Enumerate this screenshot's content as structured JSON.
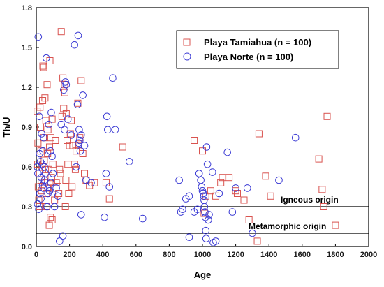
{
  "chart_data": {
    "type": "scatter",
    "xlabel": "Age",
    "ylabel": "Th/U",
    "xlim": [
      0,
      2000
    ],
    "ylim": [
      0,
      1.8
    ],
    "x_ticks": [
      "0",
      "200",
      "400",
      "600",
      "800",
      "1000",
      "1200",
      "1400",
      "1600",
      "1800",
      "2000"
    ],
    "y_ticks": [
      "0.0",
      "0.3",
      "0.6",
      "0.9",
      "1.2",
      "1.5",
      "1.8"
    ],
    "grid": false,
    "legend_position": "top-right",
    "reference_lines": [
      {
        "label": "Igneous origin",
        "y": 0.3
      },
      {
        "label": "Metamorphic origin",
        "y": 0.1
      }
    ],
    "series": [
      {
        "name": "Playa Tamiahua (n = 100)",
        "marker": "square",
        "color": "#d9534f",
        "points": [
          [
            5,
            1.02
          ],
          [
            8,
            0.62
          ],
          [
            10,
            0.78
          ],
          [
            12,
            0.45
          ],
          [
            15,
            0.35
          ],
          [
            18,
            0.3
          ],
          [
            20,
            0.55
          ],
          [
            22,
            1.05
          ],
          [
            25,
            0.9
          ],
          [
            28,
            0.72
          ],
          [
            30,
            0.5
          ],
          [
            32,
            0.42
          ],
          [
            35,
            0.6
          ],
          [
            38,
            1.1
          ],
          [
            40,
            1.36
          ],
          [
            42,
            0.82
          ],
          [
            45,
            1.35
          ],
          [
            48,
            0.65
          ],
          [
            50,
            0.48
          ],
          [
            52,
            1.12
          ],
          [
            55,
            0.58
          ],
          [
            58,
            0.95
          ],
          [
            60,
            0.4
          ],
          [
            62,
            0.3
          ],
          [
            65,
            1.22
          ],
          [
            68,
            0.7
          ],
          [
            70,
            0.88
          ],
          [
            72,
            0.44
          ],
          [
            75,
            0.58
          ],
          [
            78,
            0.16
          ],
          [
            80,
            0.75
          ],
          [
            82,
            1.4
          ],
          [
            85,
            0.22
          ],
          [
            88,
            0.82
          ],
          [
            90,
            0.52
          ],
          [
            95,
            0.96
          ],
          [
            100,
            0.62
          ],
          [
            105,
            0.44
          ],
          [
            110,
            0.35
          ],
          [
            120,
            0.48
          ],
          [
            130,
            0.5
          ],
          [
            140,
            0.58
          ],
          [
            150,
            1.62
          ],
          [
            155,
            0.98
          ],
          [
            160,
            1.27
          ],
          [
            165,
            1.04
          ],
          [
            170,
            1.22
          ],
          [
            172,
            1.16
          ],
          [
            175,
            0.3
          ],
          [
            178,
            0.5
          ],
          [
            180,
            1.0
          ],
          [
            185,
            0.8
          ],
          [
            190,
            0.62
          ],
          [
            200,
            0.76
          ],
          [
            210,
            0.95
          ],
          [
            220,
            0.76
          ],
          [
            230,
            0.62
          ],
          [
            235,
            0.58
          ],
          [
            240,
            0.72
          ],
          [
            250,
            1.08
          ],
          [
            255,
            0.76
          ],
          [
            262,
            0.82
          ],
          [
            270,
            1.25
          ],
          [
            280,
            0.7
          ],
          [
            290,
            0.55
          ],
          [
            300,
            0.5
          ],
          [
            320,
            0.46
          ],
          [
            350,
            0.48
          ],
          [
            420,
            0.48
          ],
          [
            440,
            0.36
          ],
          [
            520,
            0.75
          ],
          [
            950,
            0.8
          ],
          [
            1000,
            0.72
          ],
          [
            1010,
            0.25
          ],
          [
            1020,
            0.38
          ],
          [
            1050,
            0.42
          ],
          [
            1080,
            0.38
          ],
          [
            1110,
            0.48
          ],
          [
            1120,
            0.52
          ],
          [
            1160,
            0.52
          ],
          [
            1200,
            0.42
          ],
          [
            1210,
            0.4
          ],
          [
            1250,
            0.35
          ],
          [
            1280,
            0.2
          ],
          [
            1330,
            0.04
          ],
          [
            1340,
            0.85
          ],
          [
            1380,
            0.53
          ],
          [
            1410,
            0.38
          ],
          [
            1700,
            0.66
          ],
          [
            1720,
            0.43
          ],
          [
            1730,
            0.3
          ],
          [
            1750,
            0.98
          ],
          [
            1800,
            0.16
          ],
          [
            95,
            0.2
          ],
          [
            115,
            0.8
          ],
          [
            135,
            0.4
          ],
          [
            145,
            0.55
          ],
          [
            195,
            0.4
          ],
          [
            205,
            0.85
          ],
          [
            215,
            0.45
          ]
        ]
      },
      {
        "name": "Playa Norte (n = 100)",
        "marker": "circle",
        "color": "#3a3ad4",
        "points": [
          [
            5,
            0.6
          ],
          [
            8,
            0.32
          ],
          [
            10,
            0.55
          ],
          [
            12,
            1.58
          ],
          [
            15,
            0.28
          ],
          [
            18,
            0.98
          ],
          [
            20,
            0.7
          ],
          [
            22,
            0.4
          ],
          [
            25,
            0.64
          ],
          [
            28,
            0.36
          ],
          [
            30,
            0.52
          ],
          [
            32,
            0.85
          ],
          [
            35,
            0.62
          ],
          [
            38,
            0.46
          ],
          [
            40,
            0.72
          ],
          [
            42,
            0.44
          ],
          [
            45,
            0.82
          ],
          [
            48,
            0.6
          ],
          [
            50,
            0.5
          ],
          [
            55,
            0.55
          ],
          [
            60,
            1.42
          ],
          [
            65,
            0.3
          ],
          [
            70,
            0.4
          ],
          [
            75,
            0.92
          ],
          [
            80,
            0.42
          ],
          [
            85,
            0.72
          ],
          [
            88,
            0.48
          ],
          [
            90,
            1.01
          ],
          [
            95,
            0.68
          ],
          [
            100,
            0.55
          ],
          [
            110,
            0.3
          ],
          [
            120,
            0.44
          ],
          [
            130,
            0.38
          ],
          [
            140,
            0.04
          ],
          [
            150,
            0.92
          ],
          [
            160,
            0.08
          ],
          [
            165,
            1.18
          ],
          [
            170,
            0.88
          ],
          [
            175,
            1.24
          ],
          [
            180,
            1.22
          ],
          [
            190,
            0.96
          ],
          [
            210,
            0.84
          ],
          [
            230,
            1.52
          ],
          [
            240,
            0.6
          ],
          [
            248,
            1.07
          ],
          [
            252,
            1.59
          ],
          [
            255,
            0.78
          ],
          [
            258,
            0.88
          ],
          [
            262,
            0.8
          ],
          [
            265,
            0.72
          ],
          [
            270,
            0.84
          ],
          [
            280,
            1.14
          ],
          [
            290,
            0.76
          ],
          [
            300,
            0.5
          ],
          [
            330,
            0.48
          ],
          [
            410,
            0.22
          ],
          [
            420,
            0.55
          ],
          [
            425,
            0.98
          ],
          [
            430,
            0.88
          ],
          [
            440,
            0.45
          ],
          [
            460,
            1.27
          ],
          [
            475,
            0.88
          ],
          [
            560,
            0.64
          ],
          [
            640,
            0.21
          ],
          [
            860,
            0.5
          ],
          [
            870,
            0.26
          ],
          [
            880,
            0.28
          ],
          [
            900,
            0.36
          ],
          [
            920,
            0.38
          ],
          [
            950,
            0.26
          ],
          [
            970,
            0.28
          ],
          [
            980,
            0.55
          ],
          [
            990,
            0.5
          ],
          [
            995,
            0.45
          ],
          [
            1000,
            0.42
          ],
          [
            1005,
            0.4
          ],
          [
            1008,
            0.38
          ],
          [
            1010,
            0.35
          ],
          [
            1012,
            0.3
          ],
          [
            1015,
            0.26
          ],
          [
            1018,
            0.22
          ],
          [
            1020,
            0.12
          ],
          [
            1022,
            0.06
          ],
          [
            1025,
            0.75
          ],
          [
            1030,
            0.62
          ],
          [
            1040,
            0.24
          ],
          [
            1060,
            0.56
          ],
          [
            1080,
            0.04
          ],
          [
            1100,
            0.4
          ],
          [
            1150,
            0.71
          ],
          [
            1180,
            0.26
          ],
          [
            1200,
            0.44
          ],
          [
            1270,
            0.44
          ],
          [
            1300,
            0.1
          ],
          [
            1460,
            0.5
          ],
          [
            1560,
            0.82
          ],
          [
            920,
            0.07
          ],
          [
            1035,
            0.2
          ],
          [
            270,
            0.24
          ],
          [
            1065,
            0.03
          ]
        ]
      }
    ]
  }
}
